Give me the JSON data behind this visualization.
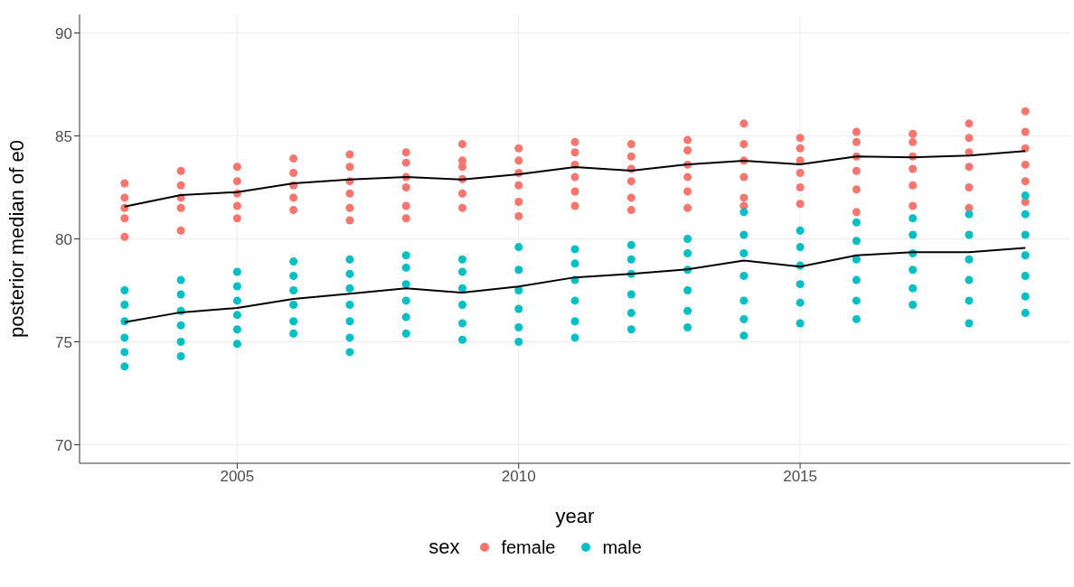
{
  "chart_data": {
    "type": "scatter",
    "xlabel": "year",
    "ylabel": "posterior median of e0",
    "legend_title": "sex",
    "legend": "bottom",
    "grid": true,
    "marker": "circle",
    "xlim": [
      2002.2,
      2019.8
    ],
    "ylim": [
      69.1,
      90.9
    ],
    "xticks": [
      2005,
      2010,
      2015
    ],
    "yticks": [
      70,
      75,
      80,
      85,
      90
    ],
    "series": [
      {
        "name": "female",
        "color": "#f8766d",
        "x": [
          2003,
          2003,
          2003,
          2003,
          2003,
          2004,
          2004,
          2004,
          2004,
          2004,
          2005,
          2005,
          2005,
          2005,
          2005,
          2006,
          2006,
          2006,
          2006,
          2006,
          2007,
          2007,
          2007,
          2007,
          2007,
          2007,
          2008,
          2008,
          2008,
          2008,
          2008,
          2008,
          2009,
          2009,
          2009,
          2009,
          2009,
          2009,
          2010,
          2010,
          2010,
          2010,
          2010,
          2010,
          2011,
          2011,
          2011,
          2011,
          2011,
          2011,
          2012,
          2012,
          2012,
          2012,
          2012,
          2012,
          2013,
          2013,
          2013,
          2013,
          2013,
          2013,
          2014,
          2014,
          2014,
          2014,
          2014,
          2014,
          2015,
          2015,
          2015,
          2015,
          2015,
          2015,
          2016,
          2016,
          2016,
          2016,
          2016,
          2016,
          2017,
          2017,
          2017,
          2017,
          2017,
          2017,
          2018,
          2018,
          2018,
          2018,
          2018,
          2018,
          2019,
          2019,
          2019,
          2019,
          2019,
          2019
        ],
        "values": [
          82.7,
          80.1,
          81.0,
          81.5,
          82.0,
          83.3,
          80.4,
          81.5,
          82.0,
          82.6,
          83.5,
          81.0,
          81.6,
          82.2,
          82.8,
          83.9,
          81.4,
          82.0,
          82.6,
          83.2,
          84.1,
          80.9,
          81.5,
          82.2,
          82.8,
          83.5,
          84.2,
          81.0,
          81.6,
          82.5,
          83.0,
          83.7,
          84.6,
          81.5,
          82.2,
          82.9,
          83.5,
          83.8,
          84.4,
          81.1,
          81.8,
          82.6,
          83.2,
          83.8,
          84.7,
          81.6,
          82.3,
          83.0,
          83.6,
          84.2,
          84.6,
          81.4,
          82.0,
          82.8,
          83.4,
          84.0,
          84.8,
          81.5,
          82.3,
          83.0,
          83.6,
          84.3,
          85.6,
          81.6,
          82.0,
          83.0,
          83.8,
          84.6,
          84.9,
          81.7,
          82.5,
          83.2,
          83.8,
          84.4,
          85.2,
          81.3,
          82.4,
          83.3,
          84.0,
          84.7,
          85.1,
          81.6,
          82.6,
          83.4,
          84.0,
          84.7,
          85.6,
          81.5,
          82.5,
          83.5,
          84.2,
          84.9,
          86.2,
          81.8,
          82.8,
          83.6,
          84.4,
          85.2
        ]
      },
      {
        "name": "male",
        "color": "#00bfc4",
        "x": [
          2003,
          2003,
          2003,
          2003,
          2003,
          2003,
          2004,
          2004,
          2004,
          2004,
          2004,
          2004,
          2005,
          2005,
          2005,
          2005,
          2005,
          2005,
          2006,
          2006,
          2006,
          2006,
          2006,
          2006,
          2007,
          2007,
          2007,
          2007,
          2007,
          2007,
          2007,
          2008,
          2008,
          2008,
          2008,
          2008,
          2008,
          2009,
          2009,
          2009,
          2009,
          2009,
          2009,
          2010,
          2010,
          2010,
          2010,
          2010,
          2010,
          2011,
          2011,
          2011,
          2011,
          2011,
          2011,
          2012,
          2012,
          2012,
          2012,
          2012,
          2012,
          2013,
          2013,
          2013,
          2013,
          2013,
          2013,
          2014,
          2014,
          2014,
          2014,
          2014,
          2014,
          2014,
          2015,
          2015,
          2015,
          2015,
          2015,
          2015,
          2016,
          2016,
          2016,
          2016,
          2016,
          2016,
          2017,
          2017,
          2017,
          2017,
          2017,
          2017,
          2018,
          2018,
          2018,
          2018,
          2018,
          2018,
          2019,
          2019,
          2019,
          2019,
          2019,
          2019,
          2019
        ],
        "values": [
          77.5,
          73.8,
          74.5,
          75.2,
          76.0,
          76.8,
          78.0,
          74.3,
          75.0,
          75.8,
          76.5,
          77.3,
          78.4,
          74.9,
          75.6,
          76.3,
          77.0,
          77.7,
          78.9,
          75.4,
          76.0,
          76.8,
          77.5,
          78.2,
          79.0,
          74.5,
          75.2,
          76.0,
          76.8,
          77.6,
          78.3,
          79.2,
          75.4,
          76.2,
          77.0,
          77.8,
          78.6,
          79.0,
          75.1,
          75.9,
          76.8,
          77.6,
          78.4,
          79.6,
          75.0,
          75.7,
          76.6,
          77.5,
          78.5,
          79.5,
          75.2,
          76.0,
          77.0,
          78.0,
          78.8,
          79.7,
          75.6,
          76.4,
          77.3,
          78.3,
          79.0,
          80.0,
          75.7,
          76.5,
          77.5,
          78.5,
          79.3,
          81.3,
          75.3,
          76.1,
          77.0,
          78.2,
          79.3,
          80.2,
          80.4,
          75.9,
          76.9,
          77.8,
          78.7,
          79.6,
          80.8,
          76.1,
          77.0,
          78.0,
          79.0,
          79.9,
          81.0,
          76.8,
          77.6,
          78.5,
          79.3,
          80.2,
          81.2,
          75.9,
          77.0,
          78.0,
          79.0,
          80.2,
          81.2,
          76.4,
          77.2,
          78.2,
          79.2,
          80.2,
          82.1
        ]
      },
      {
        "type": "line",
        "marker": "none",
        "color": "#000000",
        "x": [
          2003,
          2004,
          2005,
          2006,
          2007,
          2008,
          2009,
          2010,
          2011,
          2012,
          2013,
          2014,
          2015,
          2016,
          2017,
          2018,
          2019
        ],
        "values": [
          81.57,
          82.13,
          82.27,
          82.7,
          82.88,
          83.0,
          82.88,
          83.14,
          83.49,
          83.31,
          83.62,
          83.79,
          83.62,
          84.0,
          83.96,
          84.05,
          84.27
        ]
      },
      {
        "type": "line",
        "marker": "none",
        "color": "#000000",
        "x": [
          2003,
          2004,
          2005,
          2006,
          2007,
          2008,
          2009,
          2010,
          2011,
          2012,
          2013,
          2014,
          2015,
          2016,
          2017,
          2018,
          2019
        ],
        "values": [
          75.95,
          76.43,
          76.64,
          77.08,
          77.34,
          77.6,
          77.39,
          77.69,
          78.13,
          78.3,
          78.52,
          78.95,
          78.65,
          79.2,
          79.35,
          79.35,
          79.56
        ]
      }
    ]
  }
}
